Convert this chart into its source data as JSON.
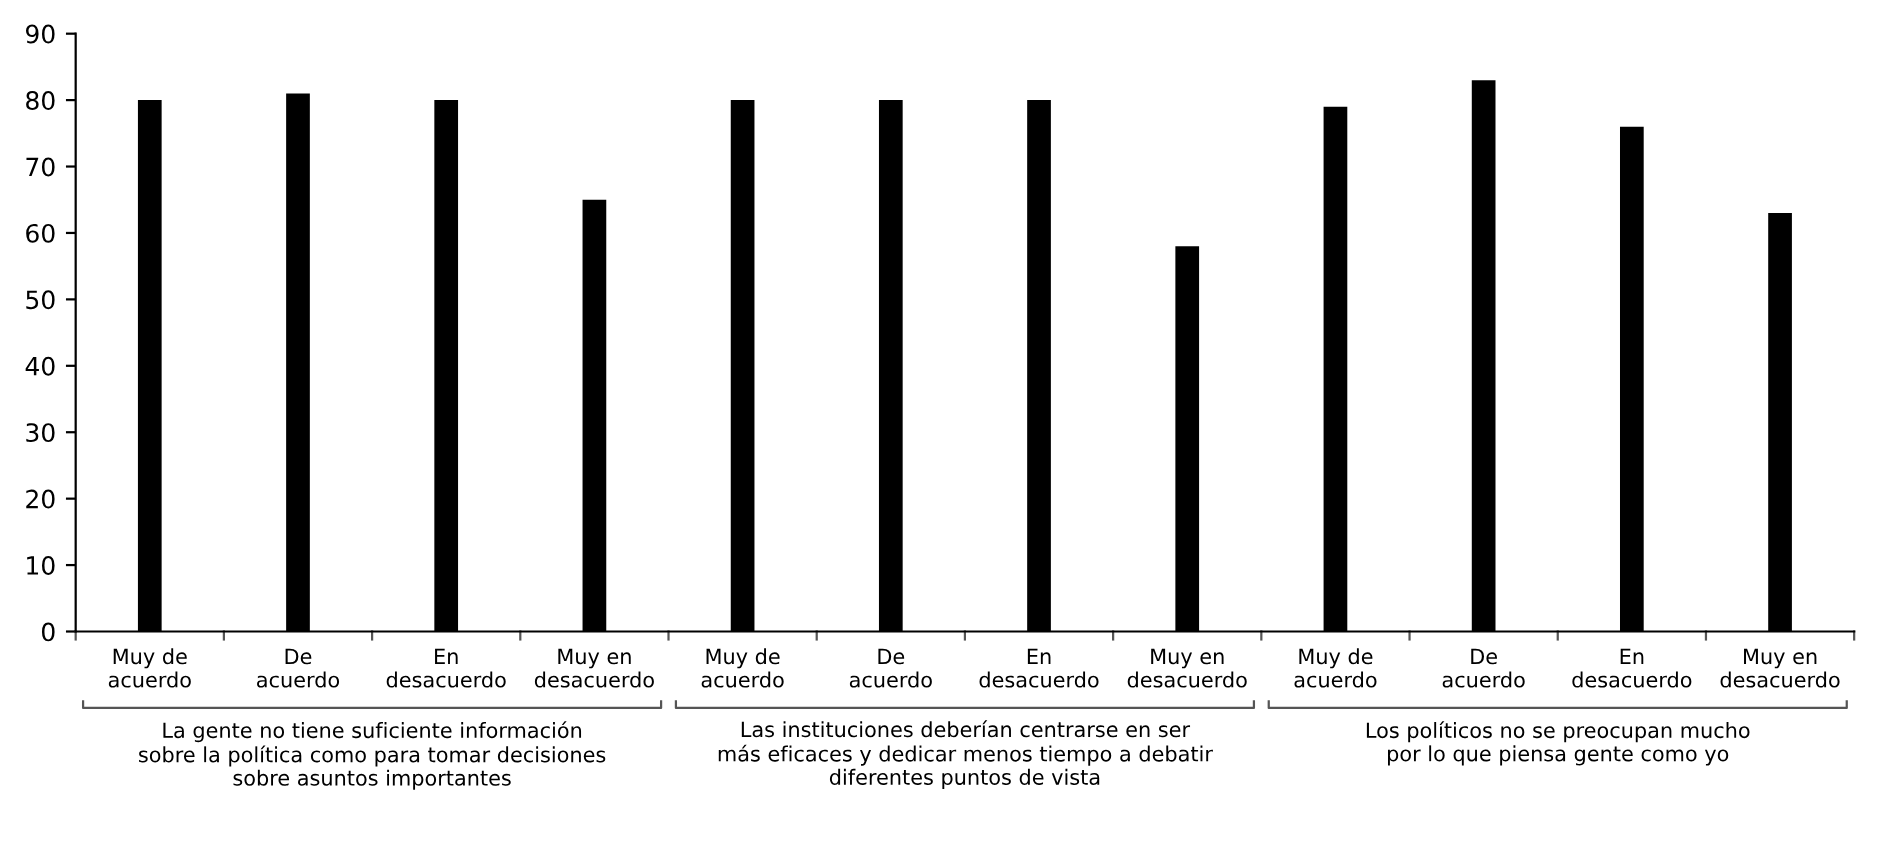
{
  "chart_data": {
    "type": "bar",
    "categories": [
      "Muy de\nacuerdo",
      "De\nacuerdo",
      "En\ndesacuerdo",
      "Muy en\ndesacuerdo",
      "Muy de\nacuerdo",
      "De\nacuerdo",
      "En\ndesacuerdo",
      "Muy en\ndesacuerdo",
      "Muy de\nacuerdo",
      "De\nacuerdo",
      "En\ndesacuerdo",
      "Muy en\ndesacuerdo"
    ],
    "values": [
      80,
      81,
      80,
      65,
      80,
      80,
      80,
      58,
      79,
      83,
      76,
      63
    ],
    "color": "#000000",
    "ylim": [
      0,
      90
    ],
    "yticks": [
      0,
      10,
      20,
      30,
      40,
      50,
      60,
      70,
      80,
      90
    ],
    "grid": false,
    "legend": false,
    "annotations": [
      "La gente no tiene suficiente información\nsobre la política como para tomar decisiones\nsobre asuntos importantes",
      "Las instituciones deberían centrarse en ser\nmás eficaces y dedicar menos tiempo a debatir\ndiferentes puntos de vista",
      "Los políticos no se preocupan mucho\npor lo que piensa gente como yo"
    ]
  }
}
